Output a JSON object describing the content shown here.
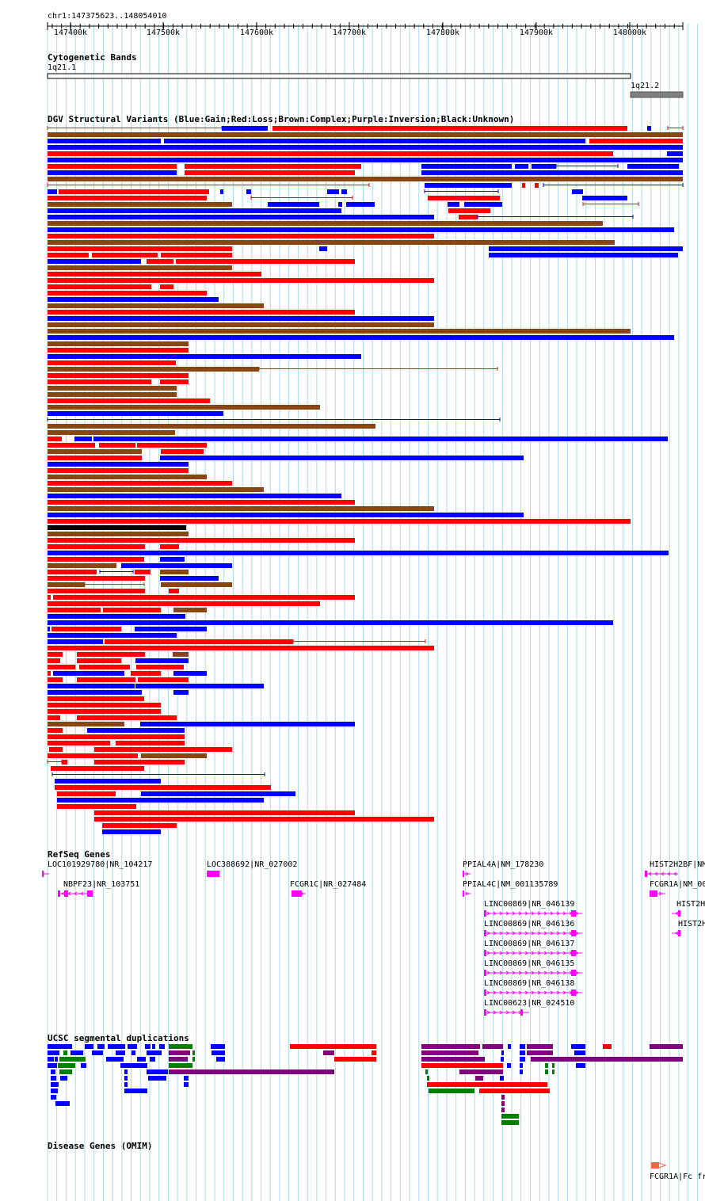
{
  "locus": "chr1:147375623..148054010",
  "colors": {
    "gain": "#0000ff",
    "loss": "#ff0000",
    "complex": "#8b4513",
    "inversion": "#800080",
    "unknown": "#000000",
    "gene": "#ff00ff",
    "segdup_green": "#008000",
    "omim": "#ff6347",
    "grid": "#add8e6"
  },
  "ruler": {
    "ticks": [
      "147400k",
      "147500k",
      "147600k",
      "147700k",
      "147800k",
      "147900k",
      "148000k"
    ]
  },
  "tracks": {
    "cytobands": {
      "title": "Cytogenetic Bands",
      "bands": [
        "1q21.1",
        "1q21.2"
      ]
    },
    "dgv": {
      "title": "DGV Structural Variants (Blue:Gain;Red:Loss;Brown:Complex;Purple:Inversion;Black:Unknown)"
    },
    "refseq": {
      "title": "RefSeq Genes",
      "labels": [
        "LOC101929780|NR_104217",
        "NBPF23|NR_103751",
        "LOC388692|NR_027002",
        "FCGR1C|NR_027484",
        "PPIAL4A|NM_178230",
        "PPIAL4C|NM_001135789",
        "LINC00869|NR_046139",
        "LINC00869|NR_046136",
        "LINC00869|NR_046137",
        "LINC00869|NR_046135",
        "LINC00869|NR_046138",
        "LINC00623|NR_024510",
        "HIST2H2BF|NM",
        "FCGR1A|NM_00",
        "HIST2H",
        "HIST2H"
      ]
    },
    "segdup": {
      "title": "UCSC segmental duplications"
    },
    "omim": {
      "title": "Disease Genes (OMIM)",
      "labels": [
        "FCGR1A|Fc fr"
      ]
    }
  }
}
